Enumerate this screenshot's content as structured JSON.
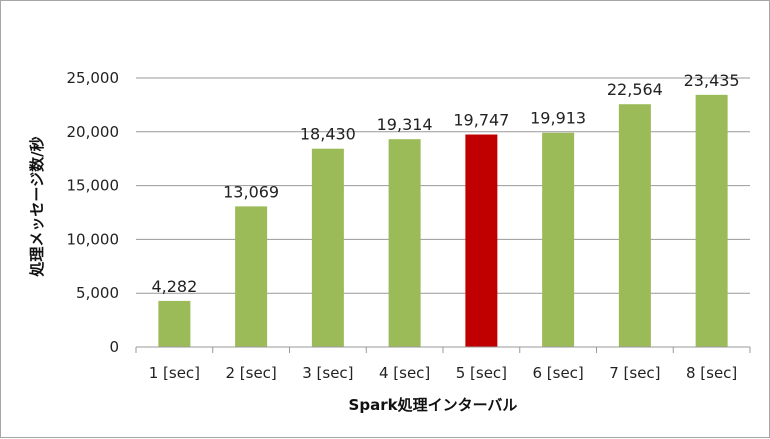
{
  "chart_data": {
    "type": "bar",
    "title": "",
    "xlabel": "Spark処理インターバル",
    "ylabel": "処理メッセージ数/秒",
    "categories": [
      "1 [sec]",
      "2 [sec]",
      "3 [sec]",
      "4 [sec]",
      "5 [sec]",
      "6 [sec]",
      "7 [sec]",
      "8 [sec]"
    ],
    "values": [
      4282,
      13069,
      18430,
      19314,
      19747,
      19913,
      22564,
      23435
    ],
    "value_labels": [
      "4,282",
      "13,069",
      "18,430",
      "19,314",
      "19,747",
      "19,913",
      "22,564",
      "23,435"
    ],
    "ylim": [
      0,
      25000
    ],
    "yticks": [
      0,
      5000,
      10000,
      15000,
      20000,
      25000
    ],
    "ytick_labels": [
      "0",
      "5,000",
      "10,000",
      "15,000",
      "20,000",
      "25,000"
    ],
    "grid": true,
    "legend": "none",
    "colors": {
      "bar": "#9bbb59",
      "highlight": "#c00000",
      "grid": "#999999"
    },
    "highlight_index": 4
  }
}
